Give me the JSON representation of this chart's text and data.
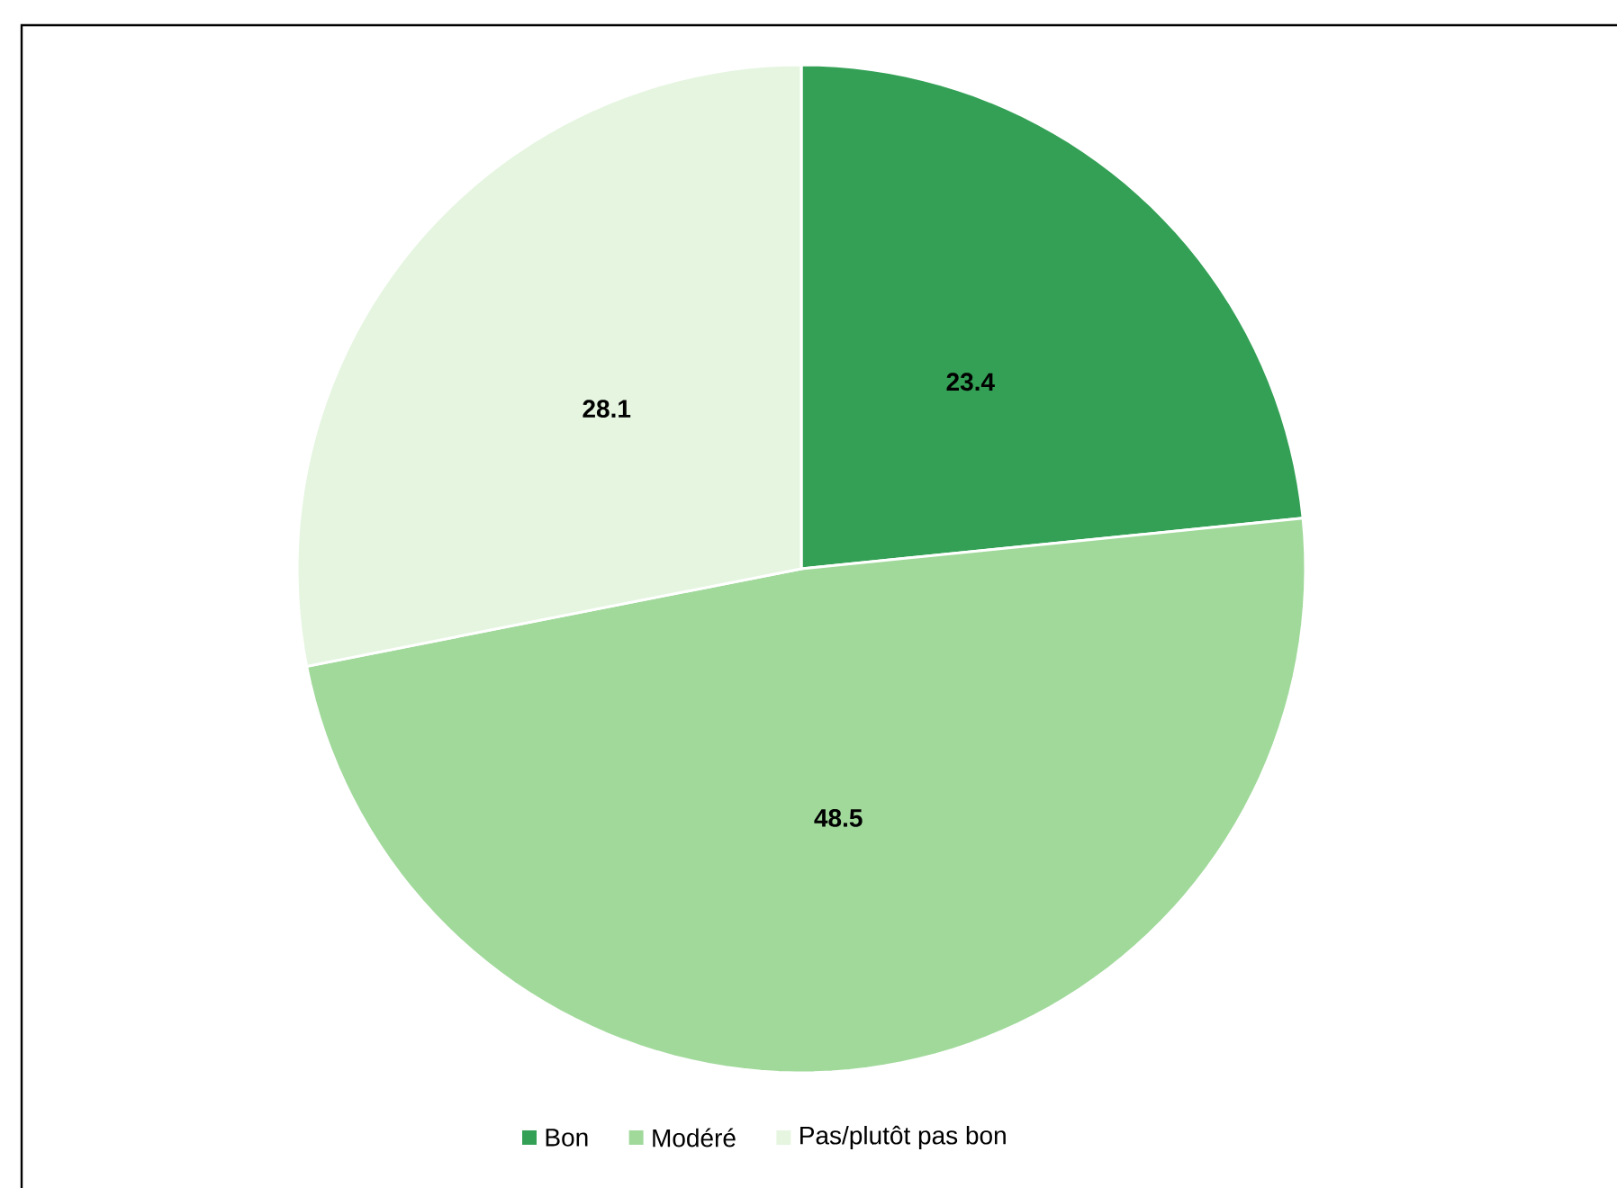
{
  "chart_data": {
    "type": "pie",
    "categories": [
      "Bon",
      "Modéré",
      "Pas/plutôt pas bon"
    ],
    "values": [
      23.4,
      48.5,
      28.1
    ],
    "colors": [
      "#33a055",
      "#a1d99b",
      "#e5f5e0"
    ],
    "data_labels": true,
    "legend": "bottom"
  }
}
